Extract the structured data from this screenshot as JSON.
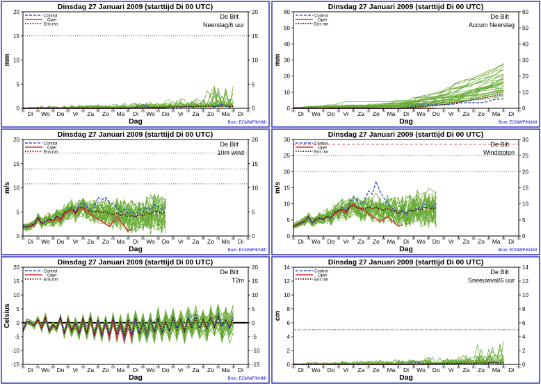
{
  "layout": {
    "cols": 2,
    "rows": 3
  },
  "common": {
    "title": "Dinsdag   27 Januari   2009  (starttijd  Di 00 UTC)",
    "station": "De Bilt",
    "xlabel": "Dag",
    "source": "Bron:  ECMWF/KNMI",
    "days": [
      "Di",
      "Wo",
      "Do",
      "Vr",
      "Za",
      "Zo",
      "Ma",
      "Di",
      "Wo",
      "Do",
      "Vr",
      "Za",
      "Zo",
      "Ma",
      "Di"
    ],
    "tick_small": "00",
    "colors": {
      "frame": "#0000aa",
      "ensemble": "#66aa33",
      "control": "#3355cc",
      "oper": "#dd3333",
      "ensmean": "#550000",
      "source": "#0000cc"
    }
  },
  "legend": {
    "control": "Control",
    "oper": "Oper",
    "ensmean": "Ens mn"
  },
  "chart_data": [
    {
      "type": "line",
      "name": "Neerslag/6 uur",
      "ylabel": "mm",
      "ylim": [
        0,
        20
      ],
      "yticks": [
        0,
        5,
        10,
        15,
        20
      ],
      "ref_lines": [
        {
          "y": 15,
          "style": "dot"
        }
      ],
      "show_source": true,
      "control": [
        0,
        0,
        0,
        0,
        0,
        0,
        0,
        0,
        0,
        0,
        0,
        0,
        0,
        0,
        0,
        0,
        0,
        0,
        0,
        0,
        0,
        0,
        0,
        0,
        0,
        0,
        0,
        0,
        0,
        0,
        0.2,
        0.5,
        0.8,
        0.4,
        0.2,
        0,
        0,
        0,
        0,
        0.1,
        0,
        0,
        0.2,
        0.3,
        0.5,
        0.2,
        0.1,
        0,
        0,
        0,
        0,
        0.3,
        0.6,
        0.8,
        0.4,
        0.2,
        0
      ],
      "oper": [
        0,
        0,
        0,
        0,
        0,
        0,
        0,
        0,
        0,
        0,
        0,
        0,
        0,
        0,
        0,
        0,
        0,
        0,
        0,
        0,
        0,
        0,
        0,
        0,
        0,
        0,
        0,
        0,
        0,
        0,
        0,
        0,
        0,
        0,
        0,
        0,
        0,
        0,
        0
      ],
      "ensmean": [
        0,
        0,
        0,
        0,
        0,
        0,
        0,
        0,
        0,
        0,
        0,
        0,
        0,
        0,
        0,
        0,
        0,
        0,
        0,
        0,
        0,
        0,
        0,
        0,
        0,
        0,
        0,
        0,
        0,
        0.05,
        0.1,
        0.15,
        0.2,
        0.2,
        0.15,
        0.2,
        0.25,
        0.2,
        0.2,
        0.3,
        0.25,
        0.3,
        0.35,
        0.3,
        0.3,
        0.35,
        0.4,
        0.35,
        0.35,
        0.4,
        0.4,
        0.35,
        0.4,
        0.4,
        0.45,
        0.4,
        0.4
      ],
      "ens_spread": 1.3,
      "ens_floor": 0
    },
    {
      "type": "line",
      "name": "Accum Neerslag",
      "ylabel": "mm",
      "ylim": [
        0,
        60
      ],
      "yticks": [
        0,
        10,
        20,
        30,
        40,
        50,
        60
      ],
      "ref_lines": [],
      "show_source": true,
      "control": [
        0,
        0,
        0,
        0,
        0,
        0,
        0,
        0,
        0,
        0,
        0,
        0,
        0,
        0,
        0,
        0,
        0,
        0,
        0,
        0,
        0,
        0,
        0,
        0,
        0,
        0,
        0,
        0,
        0,
        0,
        0.2,
        0.7,
        1.5,
        1.9,
        2.1,
        2.1,
        2.1,
        2.1,
        2.1,
        2.2,
        2.2,
        2.2,
        2.4,
        2.7,
        3.2,
        3.4,
        3.5,
        3.5,
        3.5,
        3.5,
        3.5,
        3.8,
        4.4,
        5.2,
        5.6,
        5.8,
        5.8
      ],
      "oper": [
        0,
        0,
        0,
        0,
        0,
        0,
        0,
        0,
        0,
        0,
        0,
        0,
        0,
        0,
        0,
        0,
        0,
        0,
        0,
        0,
        0,
        0,
        0,
        0,
        0,
        0,
        0,
        0,
        0,
        0,
        0,
        0,
        0,
        0,
        0,
        0,
        0,
        0,
        0
      ],
      "ensmean": [
        0,
        0,
        0,
        0,
        0,
        0,
        0,
        0,
        0,
        0,
        0,
        0,
        0,
        0,
        0,
        0,
        0,
        0,
        0,
        0,
        0,
        0,
        0,
        0,
        0,
        0,
        0,
        0,
        0,
        0.05,
        0.15,
        0.3,
        0.5,
        0.7,
        0.9,
        1.1,
        1.35,
        1.6,
        1.8,
        2.1,
        2.4,
        2.7,
        3.1,
        3.4,
        3.7,
        4.1,
        4.5,
        4.9,
        5.3,
        5.7,
        6.2,
        6.6,
        7.1,
        7.6,
        8.1,
        8.6,
        9.1
      ],
      "ens_spread": 1.6,
      "ens_floor": 0,
      "ens_cumulative": true
    },
    {
      "type": "line",
      "name": "10m wind",
      "ylabel": "m/s",
      "ylim": [
        0,
        20
      ],
      "yticks": [
        0,
        5,
        10,
        15,
        20
      ],
      "ref_lines": [
        {
          "y": 10.8,
          "style": "dot"
        },
        {
          "y": 13.9,
          "style": "dot"
        },
        {
          "y": 17.2,
          "style": "dot"
        }
      ],
      "show_source": true,
      "control": [
        2,
        1.8,
        2.2,
        2.5,
        4,
        2.5,
        3,
        3.5,
        3.2,
        4,
        3.5,
        5,
        5.5,
        6,
        5,
        6.5,
        7,
        6,
        5.5,
        6,
        8,
        7.5,
        8,
        7,
        6.5,
        6,
        5,
        5.5,
        4.5,
        5,
        4,
        5.5,
        5,
        6,
        5.5,
        6.5,
        6,
        5.5,
        6
      ],
      "oper": [
        2,
        1.8,
        2,
        2.3,
        3.8,
        2.5,
        3,
        3.3,
        3,
        3.6,
        3,
        4.5,
        5,
        5.5,
        4.5,
        6,
        5.5,
        5,
        4.5,
        4,
        3.5,
        3,
        2.5,
        2,
        3,
        4,
        3,
        2,
        1,
        1.5
      ],
      "ensmean": [
        2,
        1.9,
        2.2,
        2.4,
        3.8,
        2.6,
        3.1,
        3.5,
        3.3,
        4.1,
        3.6,
        4.8,
        5.2,
        5.6,
        4.9,
        5.8,
        6,
        5.4,
        5.1,
        5,
        5.2,
        4.9,
        5,
        4.6,
        4.4,
        4.8,
        4.3,
        4.5,
        4,
        4.2,
        3.9,
        4.5,
        4.3,
        4.8,
        4.5,
        5.2,
        5,
        4.7,
        5
      ],
      "ens_spread": 2.4,
      "ens_floor": 0
    },
    {
      "type": "line",
      "name": "Windstoten",
      "ylabel": "m/s",
      "ylim": [
        0,
        30
      ],
      "yticks": [
        0,
        5,
        10,
        15,
        20,
        25,
        30
      ],
      "ref_lines": [
        {
          "y": 20,
          "style": "dot"
        },
        {
          "y": 25,
          "style": "dot"
        },
        {
          "y": 28.5,
          "style": "dash",
          "color": "#dd3333"
        }
      ],
      "show_source": true,
      "control": [
        3,
        3.5,
        4,
        4.5,
        6,
        4,
        5,
        5.5,
        5,
        6,
        5.5,
        7.5,
        8,
        9,
        8,
        10,
        12,
        11,
        10,
        11,
        14,
        13,
        17,
        14,
        12,
        10,
        9,
        8,
        7,
        8,
        6.5,
        8,
        7.5,
        9,
        8.5,
        10,
        9.5,
        9,
        10
      ],
      "oper": [
        3,
        3.5,
        4,
        4.5,
        6,
        4,
        5,
        5.5,
        5,
        6,
        5.5,
        7,
        7.5,
        8,
        7,
        9,
        10,
        9,
        8.5,
        8,
        7,
        6,
        5.5,
        4.5,
        5,
        6,
        5,
        4,
        3,
        3.5
      ],
      "ensmean": [
        3,
        3.6,
        4.1,
        4.6,
        5.8,
        4.3,
        5.2,
        5.6,
        5.3,
        6.2,
        5.7,
        7.2,
        7.8,
        8.5,
        7.6,
        9,
        9.6,
        8.8,
        8.3,
        8.5,
        9,
        8.5,
        9,
        8.3,
        8,
        8.6,
        7.8,
        8,
        7.3,
        7.6,
        7.1,
        8,
        7.8,
        8.5,
        8,
        9,
        8.7,
        8.4,
        8.8
      ],
      "ens_spread": 3.6,
      "ens_floor": 0
    },
    {
      "type": "line",
      "name": "T2m",
      "ylabel": "Celsius",
      "ylim": [
        -15,
        20
      ],
      "yticks": [
        -15,
        -10,
        -5,
        0,
        5,
        10,
        15,
        20
      ],
      "ref_lines": [
        {
          "y": 0,
          "style": "thick"
        }
      ],
      "show_source": true,
      "control": [
        -3,
        0.5,
        0,
        -1,
        1,
        -2,
        2,
        -3,
        -1,
        -2,
        2,
        -4,
        1,
        -3,
        0,
        -4,
        1,
        -4,
        2,
        -5,
        1,
        -5,
        0,
        -5,
        2,
        -4,
        0,
        -6,
        1,
        -5,
        2,
        -4,
        0,
        -5,
        1,
        -3,
        2,
        -4,
        0,
        -3,
        2,
        -2,
        1,
        -3,
        2,
        -1,
        3,
        -2,
        1,
        -2,
        2,
        -1,
        3,
        -1,
        1,
        -2,
        2
      ],
      "oper": [
        -3,
        0.5,
        0,
        -1,
        1,
        -2,
        2,
        -3,
        -1,
        -2,
        2,
        -4,
        1,
        -3,
        0,
        -4,
        1,
        -4,
        2,
        -5,
        1,
        -5,
        0,
        -6,
        1,
        -6,
        -1,
        -7,
        0,
        -7
      ],
      "ensmean": [
        -3,
        0.4,
        0,
        -1,
        1.2,
        -2,
        2,
        -3,
        -0.8,
        -2,
        1.8,
        -3.8,
        1,
        -3,
        0,
        -3.8,
        1.2,
        -3.8,
        1.8,
        -4.5,
        1,
        -4.5,
        0.5,
        -4.5,
        1.5,
        -4,
        0.5,
        -4.8,
        1,
        -4.5,
        1.5,
        -4,
        0.5,
        -4,
        1,
        -3.5,
        1.5,
        -3.5,
        0.5,
        -3,
        1.5,
        -2.5,
        1,
        -3,
        1.5,
        -2,
        2,
        -2,
        1,
        -2,
        1.5,
        -1.5,
        2,
        -1.5,
        1,
        -1.5,
        1.5
      ],
      "ens_spread": 3.2,
      "ens_floor": -20
    },
    {
      "type": "line",
      "name": "Sneeuwval/6 uur",
      "ylabel": "cm",
      "ylim": [
        0,
        14
      ],
      "yticks": [
        0,
        2,
        4,
        6,
        8,
        10,
        12,
        14
      ],
      "ref_lines": [
        {
          "y": 5,
          "style": "dot"
        },
        {
          "y": 5,
          "style": "dash",
          "color": "#dd3333"
        }
      ],
      "show_source": false,
      "control": [
        0,
        0,
        0,
        0,
        0,
        0,
        0,
        0,
        0,
        0,
        0,
        0,
        0,
        0,
        0,
        0,
        0,
        0,
        0,
        0,
        0,
        0,
        0,
        0,
        0,
        0,
        0,
        0,
        0,
        0,
        0,
        0.2,
        0.5,
        0.3,
        0.1,
        0,
        0,
        0,
        0,
        0,
        0,
        0,
        0,
        0.1,
        0.2,
        0.1,
        0,
        0,
        0,
        0,
        0,
        0,
        0.2,
        0.4,
        0.2,
        0,
        0
      ],
      "oper": [
        0,
        0,
        0,
        0,
        0,
        0,
        0,
        0,
        0,
        0,
        0,
        0,
        0,
        0,
        0,
        0,
        0,
        0,
        0,
        0,
        0,
        0,
        0,
        0,
        0,
        0,
        0,
        0,
        0,
        0,
        0,
        0,
        0,
        0,
        0,
        0,
        0,
        0,
        0
      ],
      "ensmean": [
        0,
        0,
        0,
        0,
        0,
        0,
        0,
        0,
        0,
        0,
        0,
        0,
        0,
        0,
        0,
        0,
        0,
        0,
        0,
        0,
        0,
        0,
        0,
        0,
        0,
        0,
        0,
        0,
        0,
        0,
        0,
        0,
        0.05,
        0.05,
        0.05,
        0.08,
        0.1,
        0.08,
        0.1,
        0.12,
        0.1,
        0.12,
        0.15,
        0.12,
        0.12,
        0.15,
        0.18,
        0.15,
        0.15,
        0.18,
        0.2,
        0.15,
        0.18,
        0.2,
        0.22,
        0.2,
        0.2
      ],
      "ens_spread": 0.9,
      "ens_floor": 0
    }
  ]
}
